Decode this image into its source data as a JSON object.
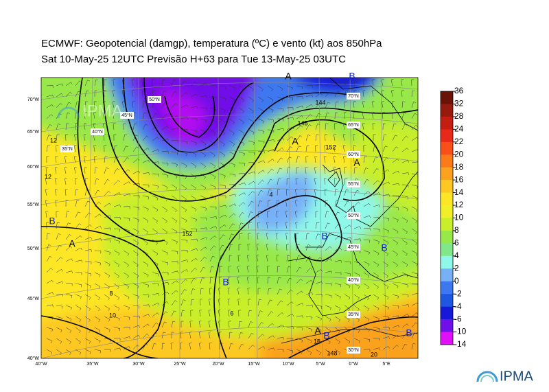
{
  "header": {
    "title_line1": "ECMWF:  Geopotencial (damgp), temperatura (ºC) e vento (kt) aos 850hPa",
    "title_line2": "Sat 10-May-25 12UTC Previsão H+63 para Tue 13-May-25 03UTC"
  },
  "map": {
    "left_labels": [
      "70°W",
      "65°W",
      "60°W",
      "55°W",
      "50°W",
      "45°W",
      "40°W"
    ],
    "bottom_labels": [
      "40°W",
      "35°W",
      "30°W",
      "25°W",
      "20°W",
      "15°W",
      "10°W",
      "5°W",
      "0°W",
      "5°E"
    ],
    "grid_labels": [
      "70°N",
      "65°N",
      "60°N",
      "55°N",
      "50°N",
      "45°N",
      "40°N",
      "35°N",
      "30°N",
      "50°N",
      "45°N",
      "40°N",
      "35°N"
    ],
    "centers": [
      "A",
      "A",
      "A",
      "A",
      "A",
      "B",
      "B",
      "B",
      "B",
      "B",
      "B",
      "B"
    ],
    "contour_labels": [
      "152",
      "144",
      "148",
      "152",
      "12",
      "12",
      "10",
      "8",
      "6",
      "4",
      "20",
      "16",
      "148"
    ]
  },
  "colorbar": {
    "labels": [
      36,
      32,
      28,
      24,
      22,
      20,
      18,
      16,
      14,
      12,
      10,
      8,
      6,
      4,
      2,
      0,
      -2,
      -4,
      -6,
      -10,
      -14
    ],
    "colors": [
      "#6a1408",
      "#961a0e",
      "#c41e12",
      "#e82818",
      "#f85018",
      "#fb7a1a",
      "#fca21e",
      "#fdc822",
      "#fde624",
      "#f0f028",
      "#c8ef2a",
      "#98e84a",
      "#80e88a",
      "#90f8e8",
      "#78b0f8",
      "#3c78f0",
      "#1e58e0",
      "#1818d8",
      "#7010e8",
      "#e010f8"
    ]
  },
  "logo": {
    "text": "IPMA"
  }
}
